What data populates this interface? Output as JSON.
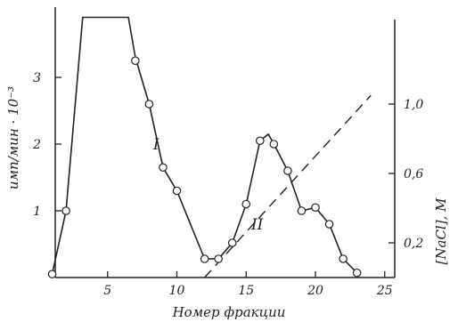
{
  "chart_data": {
    "type": "line",
    "xlabel": "Номер фракции",
    "ylabel_left": "имп/мин · 10⁻³",
    "ylabel_right": "[NaCl], М",
    "xlim": [
      0,
      26
    ],
    "ylim_left": [
      0,
      3.9
    ],
    "ylim_right": [
      0,
      1.5
    ],
    "x_ticks": [
      5,
      10,
      15,
      20,
      25
    ],
    "x_tick_labels": [
      "5",
      "10",
      "15",
      "20",
      "25"
    ],
    "y_left_ticks": [
      1,
      2,
      3
    ],
    "y_left_tick_labels": [
      "1",
      "2",
      "3"
    ],
    "y_right_ticks": [
      0.2,
      0.6,
      1.0
    ],
    "y_right_tick_labels": [
      "0,2",
      "0,6",
      "1,0"
    ],
    "grid": false,
    "peak_labels": [
      {
        "text": "I",
        "x": 8.5,
        "y": 2.0
      },
      {
        "text": "II",
        "x": 15.8,
        "y": 0.8
      }
    ],
    "series": [
      {
        "style": "solid",
        "axis": "left",
        "curve": [
          [
            1,
            0.05
          ],
          [
            2,
            1.0
          ],
          [
            3.2,
            3.9
          ],
          [
            6.5,
            3.9
          ],
          [
            7,
            3.3
          ],
          [
            8,
            2.6
          ],
          [
            9,
            1.65
          ],
          [
            10,
            1.3
          ],
          [
            12,
            0.28
          ],
          [
            13,
            0.28
          ],
          [
            14,
            0.52
          ],
          [
            15,
            1.1
          ],
          [
            16,
            2.05
          ],
          [
            16.6,
            2.15
          ],
          [
            17,
            2.0
          ],
          [
            18,
            1.6
          ],
          [
            19,
            1.0
          ],
          [
            20,
            1.05
          ],
          [
            21,
            0.8
          ],
          [
            22,
            0.28
          ],
          [
            23,
            0.07
          ]
        ],
        "points": [
          {
            "x": 1,
            "y": 0.05
          },
          {
            "x": 2,
            "y": 1.0
          },
          {
            "x": 7,
            "y": 3.25
          },
          {
            "x": 8,
            "y": 2.6
          },
          {
            "x": 9,
            "y": 1.65
          },
          {
            "x": 10,
            "y": 1.3
          },
          {
            "x": 12,
            "y": 0.28
          },
          {
            "x": 13,
            "y": 0.28
          },
          {
            "x": 14,
            "y": 0.52
          },
          {
            "x": 15,
            "y": 1.1
          },
          {
            "x": 16,
            "y": 2.05
          },
          {
            "x": 17,
            "y": 2.0
          },
          {
            "x": 18,
            "y": 1.6
          },
          {
            "x": 19,
            "y": 1.0
          },
          {
            "x": 20,
            "y": 1.05
          },
          {
            "x": 21,
            "y": 0.8
          },
          {
            "x": 22,
            "y": 0.28
          },
          {
            "x": 23,
            "y": 0.07
          }
        ]
      },
      {
        "style": "dashed",
        "axis": "right",
        "x": [
          12,
          24
        ],
        "y": [
          0.0,
          1.05
        ]
      }
    ]
  }
}
